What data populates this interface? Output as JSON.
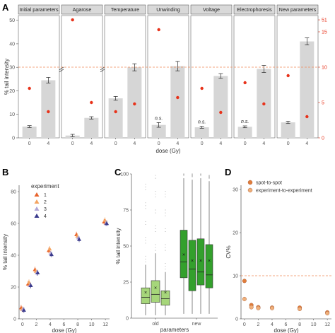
{
  "colors": {
    "bar": "#d6d6d6",
    "dot": "#e8321a",
    "refline": "#f08a5a",
    "strip_bg": "#d9d9d9",
    "cv_axis": "#e8321a",
    "old_box": "#a6d67a",
    "new_box": "#33a02c",
    "exp": [
      "#e8632b",
      "#f4a460",
      "#b0a6d6",
      "#3a3a8c"
    ],
    "spot": "#e07c3a",
    "exper": "#f0b07a"
  },
  "panels": {
    "A": "A",
    "B": "B",
    "C": "C",
    "D": "D"
  },
  "chart_data": [
    {
      "panel": "A",
      "type": "bar",
      "xlabel": "dose (Gy)",
      "ylabel": "% tail intensity",
      "y2label": "%CV",
      "ylim": [
        0,
        52
      ],
      "yticks": [
        "0",
        "10",
        "20",
        "30",
        "40",
        "50"
      ],
      "y2ticks": [
        "0",
        "5",
        "10",
        "15",
        "51"
      ],
      "categories": [
        "0",
        "4"
      ],
      "ref_line_cv": 10,
      "facets": [
        {
          "name": "Initial parameters",
          "bars": [
            4.8,
            24.5
          ],
          "err": [
            0.4,
            1.2
          ],
          "cv": [
            7.0,
            3.7
          ],
          "ns": [
            false,
            false
          ]
        },
        {
          "name": "Agarose",
          "bars": [
            1.0,
            8.5
          ],
          "err": [
            0.5,
            0.5
          ],
          "cv": [
            51,
            5.0
          ],
          "ns": [
            false,
            false
          ],
          "broken": true
        },
        {
          "name": "Temperature",
          "bars": [
            16.8,
            30.0
          ],
          "err": [
            0.8,
            1.5
          ],
          "cv": [
            3.7,
            4.8
          ],
          "ns": [
            false,
            false
          ]
        },
        {
          "name": "Unwinding",
          "bars": [
            5.5,
            30.5
          ],
          "err": [
            1.0,
            2.0
          ],
          "cv": [
            15.3,
            5.7
          ],
          "ns": [
            true,
            false
          ]
        },
        {
          "name": "Voltage",
          "bars": [
            4.5,
            26.3
          ],
          "err": [
            0.4,
            1.0
          ],
          "cv": [
            7.0,
            3.6
          ],
          "ns": [
            true,
            false
          ]
        },
        {
          "name": "Electrophoresis",
          "bars": [
            4.7,
            29.3
          ],
          "err": [
            0.4,
            1.5
          ],
          "cv": [
            7.8,
            4.8
          ],
          "ns": [
            true,
            false
          ]
        },
        {
          "name": "New parameters",
          "bars": [
            6.6,
            41.0
          ],
          "err": [
            0.5,
            1.5
          ],
          "cv": [
            8.8,
            3.0
          ],
          "ns": [
            false,
            false
          ]
        }
      ],
      "ns_label": "n.s."
    },
    {
      "panel": "B",
      "type": "scatter",
      "xlabel": "dose (Gy)",
      "ylabel": "% tail intensity",
      "legend_title": "experiment",
      "legend": [
        "1",
        "2",
        "3",
        "4"
      ],
      "xticks": [
        "0",
        "2",
        "4",
        "6",
        "8",
        "10",
        "12"
      ],
      "yticks": [
        "0",
        "20",
        "40",
        "60",
        "80"
      ],
      "xlim": [
        -0.5,
        12.6
      ],
      "ylim": [
        0,
        84
      ],
      "x": [
        0,
        1,
        2,
        4,
        8,
        12
      ],
      "series": [
        {
          "name": "1",
          "values": [
            7,
            22,
            31,
            43,
            53,
            61
          ]
        },
        {
          "name": "2",
          "values": [
            6,
            23,
            30,
            44,
            52,
            62
          ]
        },
        {
          "name": "3",
          "values": [
            6,
            21,
            29,
            41,
            51,
            60
          ]
        },
        {
          "name": "4",
          "values": [
            5.5,
            21,
            29,
            40.5,
            50,
            60
          ]
        }
      ]
    },
    {
      "panel": "C",
      "type": "box",
      "xlabel": "parameters",
      "ylabel": "% tail intensity",
      "ylim": [
        0,
        100
      ],
      "yticks": [
        "0",
        "25",
        "50",
        "75",
        "100"
      ],
      "groups": [
        "old",
        "new"
      ],
      "boxes": [
        {
          "group": "old",
          "q1": 10,
          "median": 14.5,
          "q3": 21,
          "lo": 2,
          "hi": 37,
          "mean": 18
        },
        {
          "group": "old",
          "q1": 11,
          "median": 16.5,
          "q3": 26,
          "lo": 2,
          "hi": 45,
          "mean": 21
        },
        {
          "group": "old",
          "q1": 9,
          "median": 13.5,
          "q3": 19,
          "lo": 2,
          "hi": 32,
          "mean": 18
        },
        {
          "group": "new",
          "q1": 28,
          "median": 39,
          "q3": 61,
          "lo": 3,
          "hi": 97,
          "mean": 44
        },
        {
          "group": "new",
          "q1": 19,
          "median": 34,
          "q3": 54,
          "lo": 3,
          "hi": 96,
          "mean": 40
        },
        {
          "group": "new",
          "q1": 23,
          "median": 32,
          "q3": 55,
          "lo": 3,
          "hi": 97,
          "mean": 40
        },
        {
          "group": "new",
          "q1": 21,
          "median": 30,
          "q3": 51,
          "lo": 3,
          "hi": 95,
          "mean": 40
        }
      ]
    },
    {
      "panel": "D",
      "type": "scatter",
      "xlabel": "dose (Gy)",
      "ylabel": "CV%",
      "xticks": [
        "0",
        "2",
        "4",
        "6",
        "8",
        "10",
        "12"
      ],
      "yticks": [
        "0",
        "10",
        "20",
        "30"
      ],
      "xlim": [
        -0.5,
        12.6
      ],
      "ylim": [
        0,
        31
      ],
      "ref_line": 10,
      "x": [
        0,
        1,
        2,
        4,
        8,
        12
      ],
      "series": [
        {
          "name": "spot-to-spot",
          "values": [
            8.8,
            3.2,
            2.7,
            2.6,
            2.6,
            1.5
          ]
        },
        {
          "name": "experiment-to-experiment",
          "values": [
            4.6,
            2.7,
            2.5,
            2.5,
            2.3,
            1.3
          ]
        }
      ]
    }
  ]
}
